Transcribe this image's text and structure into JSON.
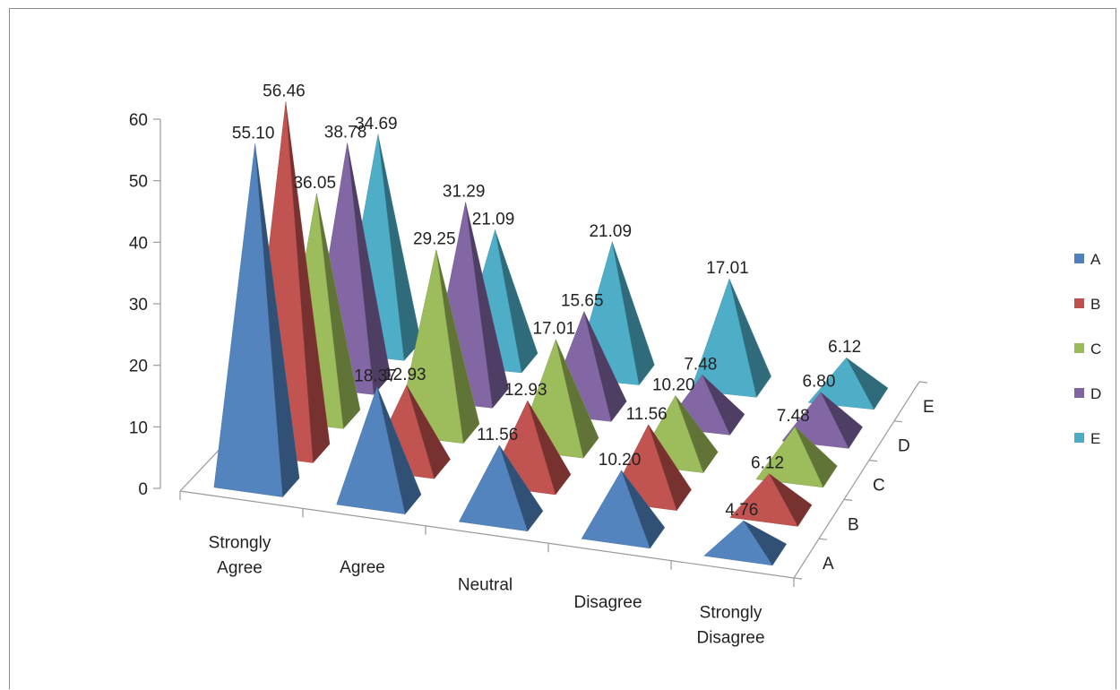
{
  "chart_data": {
    "type": "bar",
    "subtype": "3d-pyramid",
    "title": "",
    "categories": [
      "Strongly Agree",
      "Agree",
      "Neutral",
      "Disagree",
      "Strongly Disagree"
    ],
    "category_labels": [
      [
        "Strongly",
        "Agree"
      ],
      [
        "Agree"
      ],
      [
        "Neutral"
      ],
      [
        "Disagree"
      ],
      [
        "Strongly",
        "Disagree"
      ]
    ],
    "series": [
      {
        "name": "A",
        "color": "#4f81bd",
        "values": [
          55.1,
          18.37,
          11.56,
          10.2,
          4.76
        ]
      },
      {
        "name": "B",
        "color": "#c0504d",
        "values": [
          56.46,
          12.93,
          12.93,
          11.56,
          6.12
        ]
      },
      {
        "name": "C",
        "color": "#9bbb59",
        "values": [
          36.05,
          29.25,
          17.01,
          10.2,
          7.48
        ]
      },
      {
        "name": "D",
        "color": "#8064a2",
        "values": [
          38.78,
          31.29,
          15.65,
          7.48,
          6.8
        ]
      },
      {
        "name": "E",
        "color": "#4bacc6",
        "values": [
          34.69,
          21.09,
          21.09,
          17.01,
          6.12
        ]
      }
    ],
    "value_labels": [
      [
        "55.10",
        "18.37",
        "11.56",
        "10.20",
        "4.76"
      ],
      [
        "56.46",
        "12.93",
        "12.93",
        "11.56",
        "6.12"
      ],
      [
        "36.05",
        "29.25",
        "17.01",
        "10.20",
        "7.48"
      ],
      [
        "38.78",
        "31.29",
        "15.65",
        "7.48",
        "6.80"
      ],
      [
        "34.69",
        "21.09",
        "21.09",
        "17.01",
        "6.12"
      ]
    ],
    "ylim": [
      0,
      60
    ],
    "yticks": [
      "0",
      "10",
      "20",
      "30",
      "40",
      "50",
      "60"
    ],
    "depth_axis_labels": [
      "A",
      "B",
      "C",
      "D",
      "E"
    ],
    "legend_position": "right",
    "grid": false
  }
}
